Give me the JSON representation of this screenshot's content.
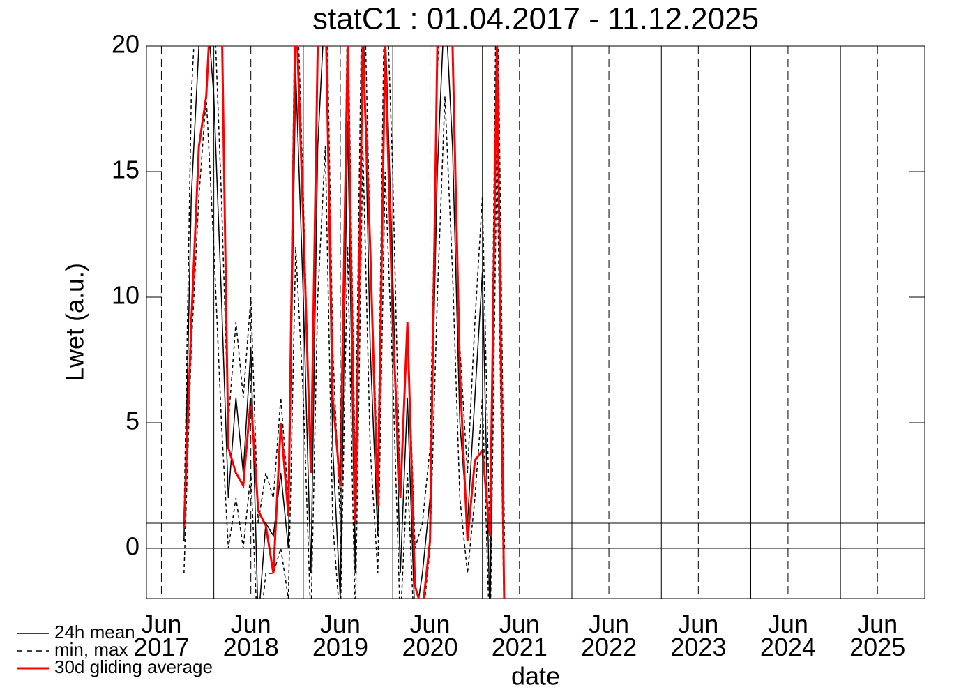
{
  "chart_data": {
    "type": "line",
    "title": "statC1 : 01.04.2017 - 11.12.2025",
    "xlabel": "date",
    "ylabel": "Lwet (a.u.)",
    "xlim": [
      "2017-04-01",
      "2025-12-11"
    ],
    "ylim": [
      -2,
      20
    ],
    "yticks": [
      0,
      5,
      10,
      15,
      20
    ],
    "xticks": [
      {
        "value": "2017-06",
        "label": "Jun\n2017"
      },
      {
        "value": "2018-06",
        "label": "Jun\n2018"
      },
      {
        "value": "2019-06",
        "label": "Jun\n2019"
      },
      {
        "value": "2020-06",
        "label": "Jun\n2020"
      },
      {
        "value": "2021-06",
        "label": "Jun\n2021"
      },
      {
        "value": "2022-06",
        "label": "Jun\n2022"
      },
      {
        "value": "2023-06",
        "label": "Jun\n2023"
      },
      {
        "value": "2024-06",
        "label": "Jun\n2024"
      },
      {
        "value": "2025-06",
        "label": "Jun\n2025"
      }
    ],
    "hlines": [
      0,
      1
    ],
    "grid": true,
    "legend": "bottom-left",
    "x": [
      "2017-09",
      "2017-10",
      "2017-11",
      "2017-12",
      "2018-01",
      "2018-02",
      "2018-03",
      "2018-04",
      "2018-05",
      "2018-06",
      "2018-07",
      "2018-08",
      "2018-09",
      "2018-10",
      "2018-11",
      "2018-12",
      "2019-01",
      "2019-02",
      "2019-03",
      "2019-04",
      "2019-05",
      "2019-06",
      "2019-07",
      "2019-08",
      "2019-09",
      "2019-10",
      "2019-11",
      "2019-12",
      "2020-01",
      "2020-02",
      "2020-03",
      "2020-04",
      "2020-05",
      "2020-06",
      "2020-07",
      "2020-08",
      "2020-09",
      "2020-10",
      "2020-11",
      "2020-12",
      "2021-01",
      "2021-02",
      "2021-03",
      "2021-04"
    ],
    "series": [
      {
        "name": "24h mean",
        "color": "#000000",
        "style": "solid",
        "values": [
          0.3,
          14,
          20,
          22,
          18,
          10,
          2,
          6,
          3,
          8,
          -3,
          1,
          0.5,
          3,
          0,
          19,
          10,
          -1,
          16,
          22,
          4,
          -2,
          17,
          -1,
          22,
          8,
          0.5,
          21,
          11,
          -1,
          6,
          -3,
          -1,
          2,
          15,
          22,
          16,
          5,
          1,
          6,
          11,
          -3,
          22,
          -3
        ]
      },
      {
        "name": "min, max",
        "color": "#000000",
        "style": "dashed",
        "values": [
          1,
          18,
          24,
          25,
          22,
          14,
          5,
          9,
          6,
          10,
          1,
          3,
          2,
          6,
          2,
          24,
          14,
          3,
          21,
          25,
          8,
          1,
          22,
          3,
          25,
          12,
          3,
          24,
          15,
          2,
          9,
          0,
          1,
          4,
          19,
          25,
          20,
          8,
          3,
          9,
          14,
          0,
          25,
          0
        ],
        "min": [
          -1,
          8,
          14,
          18,
          12,
          5,
          0,
          2,
          0,
          3,
          -4,
          -1,
          -1,
          0,
          -2,
          12,
          6,
          -3,
          10,
          16,
          1,
          -3,
          12,
          -3,
          16,
          4,
          -1,
          15,
          7,
          -3,
          3,
          -4,
          -3,
          0,
          10,
          18,
          11,
          2,
          -1,
          2,
          6,
          -4,
          16,
          -4
        ]
      },
      {
        "name": "30d gliding average",
        "color": "#ff0000",
        "style": "solid",
        "values": [
          0.8,
          9,
          16,
          18,
          24,
          22,
          4,
          3,
          2.5,
          6,
          1.5,
          0.9,
          -1,
          5,
          1.3,
          22,
          13,
          3,
          20,
          22,
          6,
          2.5,
          20,
          1,
          20,
          12,
          1.7,
          20,
          9,
          2,
          9,
          -1.5,
          -2.5,
          0.3,
          20,
          22,
          20,
          7,
          0.3,
          3.5,
          3.9,
          0.5,
          20,
          -3
        ]
      }
    ]
  }
}
